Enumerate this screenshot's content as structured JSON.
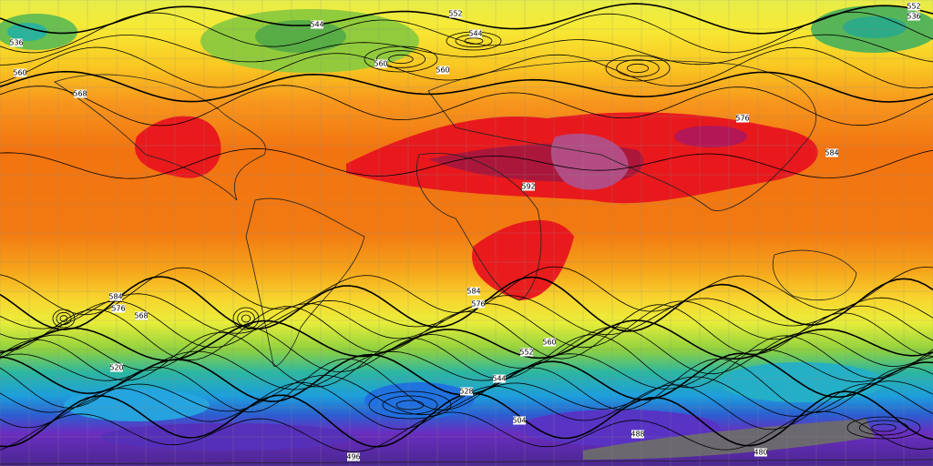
{
  "map": {
    "contour_labels": [
      "552",
      "544",
      "544",
      "560",
      "560",
      "568",
      "560",
      "536",
      "576",
      "592",
      "584",
      "584",
      "576",
      "584",
      "576",
      "568",
      "560",
      "552",
      "544",
      "528",
      "504",
      "488",
      "496",
      "480",
      "520",
      "552",
      "536"
    ]
  }
}
